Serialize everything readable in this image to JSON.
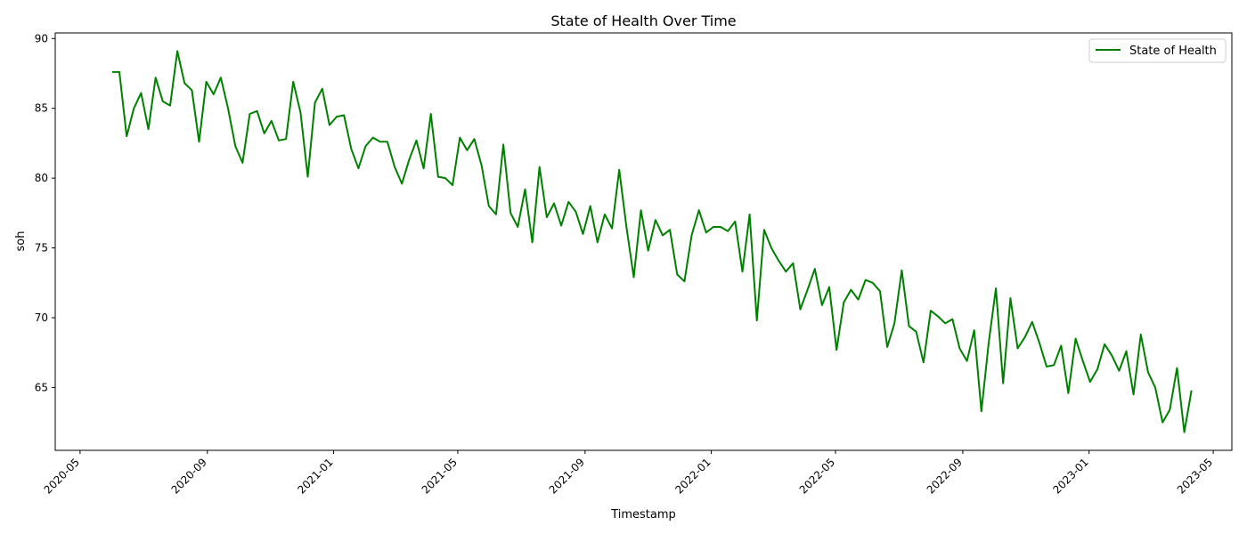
{
  "chart_data": {
    "type": "line",
    "title": "State of Health Over Time",
    "xlabel": "Timestamp",
    "ylabel": "soh",
    "x_axis": {
      "kind": "date",
      "range": [
        "2020-04-07",
        "2023-05-19"
      ],
      "ticks": [
        "2020-05-01",
        "2020-09-01",
        "2021-01-01",
        "2021-05-01",
        "2021-09-01",
        "2022-01-01",
        "2022-05-01",
        "2022-09-01",
        "2023-01-01",
        "2023-05-01"
      ],
      "tick_labels": [
        "2020-05",
        "2020-09",
        "2021-01",
        "2021-05",
        "2021-09",
        "2022-01",
        "2022-05",
        "2022-09",
        "2023-01",
        "2023-05"
      ]
    },
    "ylim": [
      60.5,
      90.4
    ],
    "yticks": [
      65,
      70,
      75,
      80,
      85,
      90
    ],
    "ytick_labels": [
      "65",
      "70",
      "75",
      "80",
      "85",
      "90"
    ],
    "grid": false,
    "legend": {
      "position": "upper right",
      "entries": [
        "State of Health"
      ]
    },
    "series": [
      {
        "name": "State of Health",
        "color": "#008000",
        "points": [
          [
            "2020-06-01",
            87.6
          ],
          [
            "2020-06-08",
            87.6
          ],
          [
            "2020-06-15",
            83.0
          ],
          [
            "2020-06-22",
            85.0
          ],
          [
            "2020-06-29",
            86.1
          ],
          [
            "2020-07-06",
            83.5
          ],
          [
            "2020-07-13",
            87.2
          ],
          [
            "2020-07-20",
            85.5
          ],
          [
            "2020-07-27",
            85.2
          ],
          [
            "2020-08-03",
            89.1
          ],
          [
            "2020-08-10",
            86.8
          ],
          [
            "2020-08-17",
            86.3
          ],
          [
            "2020-08-24",
            82.6
          ],
          [
            "2020-08-31",
            86.9
          ],
          [
            "2020-09-07",
            86.0
          ],
          [
            "2020-09-14",
            87.2
          ],
          [
            "2020-09-21",
            85.0
          ],
          [
            "2020-09-28",
            82.3
          ],
          [
            "2020-10-05",
            81.1
          ],
          [
            "2020-10-12",
            84.6
          ],
          [
            "2020-10-19",
            84.8
          ],
          [
            "2020-10-26",
            83.2
          ],
          [
            "2020-11-02",
            84.1
          ],
          [
            "2020-11-09",
            82.7
          ],
          [
            "2020-11-16",
            82.8
          ],
          [
            "2020-11-23",
            86.9
          ],
          [
            "2020-11-30",
            84.7
          ],
          [
            "2020-12-07",
            80.1
          ],
          [
            "2020-12-14",
            85.4
          ],
          [
            "2020-12-21",
            86.4
          ],
          [
            "2020-12-28",
            83.8
          ],
          [
            "2021-01-04",
            84.4
          ],
          [
            "2021-01-11",
            84.5
          ],
          [
            "2021-01-18",
            82.1
          ],
          [
            "2021-01-25",
            80.7
          ],
          [
            "2021-02-01",
            82.3
          ],
          [
            "2021-02-08",
            82.9
          ],
          [
            "2021-02-15",
            82.6
          ],
          [
            "2021-02-22",
            82.6
          ],
          [
            "2021-03-01",
            80.8
          ],
          [
            "2021-03-08",
            79.6
          ],
          [
            "2021-03-15",
            81.3
          ],
          [
            "2021-03-22",
            82.7
          ],
          [
            "2021-03-29",
            80.7
          ],
          [
            "2021-04-05",
            84.6
          ],
          [
            "2021-04-12",
            80.1
          ],
          [
            "2021-04-19",
            80.0
          ],
          [
            "2021-04-26",
            79.5
          ],
          [
            "2021-05-03",
            82.9
          ],
          [
            "2021-05-10",
            82.0
          ],
          [
            "2021-05-17",
            82.8
          ],
          [
            "2021-05-24",
            80.9
          ],
          [
            "2021-05-31",
            78.0
          ],
          [
            "2021-06-07",
            77.4
          ],
          [
            "2021-06-14",
            82.4
          ],
          [
            "2021-06-21",
            77.5
          ],
          [
            "2021-06-28",
            76.5
          ],
          [
            "2021-07-05",
            79.2
          ],
          [
            "2021-07-12",
            75.4
          ],
          [
            "2021-07-19",
            80.8
          ],
          [
            "2021-07-26",
            77.2
          ],
          [
            "2021-08-02",
            78.2
          ],
          [
            "2021-08-09",
            76.6
          ],
          [
            "2021-08-16",
            78.3
          ],
          [
            "2021-08-23",
            77.6
          ],
          [
            "2021-08-30",
            76.0
          ],
          [
            "2021-09-06",
            78.0
          ],
          [
            "2021-09-13",
            75.4
          ],
          [
            "2021-09-20",
            77.4
          ],
          [
            "2021-09-27",
            76.4
          ],
          [
            "2021-10-04",
            80.6
          ],
          [
            "2021-10-11",
            76.5
          ],
          [
            "2021-10-18",
            72.9
          ],
          [
            "2021-10-25",
            77.7
          ],
          [
            "2021-11-01",
            74.8
          ],
          [
            "2021-11-08",
            77.0
          ],
          [
            "2021-11-15",
            75.9
          ],
          [
            "2021-11-22",
            76.3
          ],
          [
            "2021-11-29",
            73.1
          ],
          [
            "2021-12-06",
            72.6
          ],
          [
            "2021-12-13",
            75.9
          ],
          [
            "2021-12-20",
            77.7
          ],
          [
            "2021-12-27",
            76.1
          ],
          [
            "2022-01-03",
            76.5
          ],
          [
            "2022-01-10",
            76.5
          ],
          [
            "2022-01-17",
            76.2
          ],
          [
            "2022-01-24",
            76.9
          ],
          [
            "2022-01-31",
            73.3
          ],
          [
            "2022-02-07",
            77.4
          ],
          [
            "2022-02-14",
            69.8
          ],
          [
            "2022-02-21",
            76.3
          ],
          [
            "2022-02-28",
            75.0
          ],
          [
            "2022-03-07",
            74.1
          ],
          [
            "2022-03-14",
            73.3
          ],
          [
            "2022-03-21",
            73.9
          ],
          [
            "2022-03-28",
            70.6
          ],
          [
            "2022-04-04",
            72.0
          ],
          [
            "2022-04-11",
            73.5
          ],
          [
            "2022-04-18",
            70.9
          ],
          [
            "2022-04-25",
            72.2
          ],
          [
            "2022-05-02",
            67.7
          ],
          [
            "2022-05-09",
            71.1
          ],
          [
            "2022-05-16",
            72.0
          ],
          [
            "2022-05-23",
            71.3
          ],
          [
            "2022-05-30",
            72.7
          ],
          [
            "2022-06-06",
            72.5
          ],
          [
            "2022-06-13",
            71.9
          ],
          [
            "2022-06-20",
            67.9
          ],
          [
            "2022-06-27",
            69.6
          ],
          [
            "2022-07-04",
            73.4
          ],
          [
            "2022-07-11",
            69.4
          ],
          [
            "2022-07-18",
            69.0
          ],
          [
            "2022-07-25",
            66.8
          ],
          [
            "2022-08-01",
            70.5
          ],
          [
            "2022-08-08",
            70.1
          ],
          [
            "2022-08-15",
            69.6
          ],
          [
            "2022-08-22",
            69.9
          ],
          [
            "2022-08-29",
            67.8
          ],
          [
            "2022-09-05",
            66.9
          ],
          [
            "2022-09-12",
            69.1
          ],
          [
            "2022-09-19",
            63.3
          ],
          [
            "2022-09-26",
            68.2
          ],
          [
            "2022-10-03",
            72.1
          ],
          [
            "2022-10-10",
            65.3
          ],
          [
            "2022-10-17",
            71.4
          ],
          [
            "2022-10-24",
            67.8
          ],
          [
            "2022-10-31",
            68.6
          ],
          [
            "2022-11-07",
            69.7
          ],
          [
            "2022-11-14",
            68.2
          ],
          [
            "2022-11-21",
            66.5
          ],
          [
            "2022-11-28",
            66.6
          ],
          [
            "2022-12-05",
            68.0
          ],
          [
            "2022-12-12",
            64.6
          ],
          [
            "2022-12-19",
            68.5
          ],
          [
            "2022-12-26",
            66.9
          ],
          [
            "2023-01-02",
            65.4
          ],
          [
            "2023-01-09",
            66.3
          ],
          [
            "2023-01-16",
            68.1
          ],
          [
            "2023-01-23",
            67.3
          ],
          [
            "2023-01-30",
            66.2
          ],
          [
            "2023-02-06",
            67.6
          ],
          [
            "2023-02-13",
            64.5
          ],
          [
            "2023-02-20",
            68.8
          ],
          [
            "2023-02-27",
            66.1
          ],
          [
            "2023-03-06",
            65.0
          ],
          [
            "2023-03-13",
            62.5
          ],
          [
            "2023-03-20",
            63.4
          ],
          [
            "2023-03-27",
            66.4
          ],
          [
            "2023-04-03",
            61.8
          ],
          [
            "2023-04-10",
            64.8
          ]
        ]
      }
    ]
  }
}
